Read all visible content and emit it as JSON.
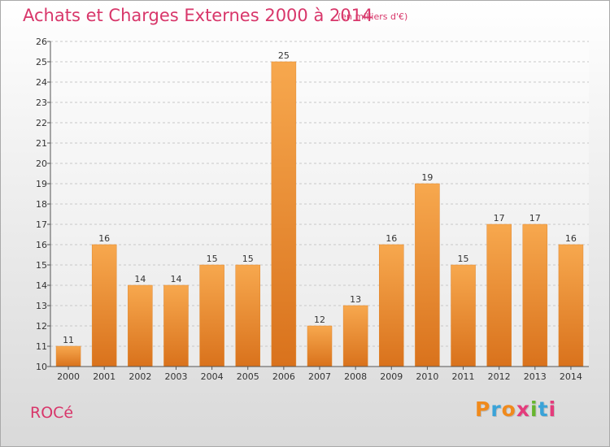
{
  "chart_data": {
    "type": "bar",
    "title": "Achats et Charges Externes 2000 à 2014",
    "subtitle": "(en milliers d'€)",
    "categories": [
      "2000",
      "2001",
      "2002",
      "2003",
      "2004",
      "2005",
      "2006",
      "2007",
      "2008",
      "2009",
      "2010",
      "2011",
      "2012",
      "2013",
      "2014"
    ],
    "values": [
      11,
      16,
      14,
      14,
      15,
      15,
      25,
      12,
      13,
      16,
      19,
      15,
      17,
      17,
      16
    ],
    "ylim": [
      10,
      26
    ],
    "yticks": [
      10,
      11,
      12,
      13,
      14,
      15,
      16,
      17,
      18,
      19,
      20,
      21,
      22,
      23,
      24,
      25,
      26
    ],
    "grid": true,
    "bar_color": "#f39a3c"
  },
  "footer": {
    "commune": "ROCé",
    "brand": "Proxiti",
    "brand_colors": [
      "#f08a1c",
      "#3aa3d8",
      "#f08a1c",
      "#e43c7c",
      "#66b52e",
      "#3aa3d8",
      "#e43c7c"
    ]
  }
}
